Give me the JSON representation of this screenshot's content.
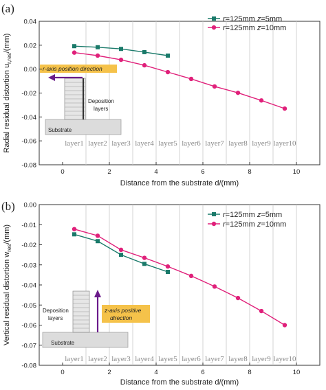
{
  "chart_data": [
    {
      "type": "line",
      "panel_label": "(a)",
      "xlabel": "Distance from the substrate d/(mm)",
      "ylabel": "Radial residual distortion u_r,res/(mm)",
      "ylabel_main": "Radial residual distortion u",
      "ylabel_sub": "r,res",
      "ylabel_tail": "/(mm)",
      "xlim": [
        -1,
        11
      ],
      "ylim": [
        -0.08,
        0.04
      ],
      "xticks": [
        0,
        2,
        4,
        6,
        8,
        10
      ],
      "yticks": [
        -0.08,
        -0.06,
        -0.04,
        -0.02,
        0.0,
        0.02,
        0.04
      ],
      "ytick_labels": [
        "-0.08",
        "-0.06",
        "-0.04",
        "-0.02",
        "0.00",
        "0.02",
        "0.04"
      ],
      "grid": "vertical",
      "legend_position": "top-right",
      "layers": [
        "layer1",
        "layer2",
        "layer3",
        "layer4",
        "layer5",
        "layer6",
        "layer7",
        "layer8",
        "layer9",
        "layer10"
      ],
      "series": [
        {
          "name": "r=125mm z=5mm",
          "name_parts": [
            "r",
            "=125mm ",
            "z",
            "=5mm"
          ],
          "color": "#1a7a6a",
          "marker": "square",
          "x": [
            0.5,
            1.5,
            2.5,
            3.5,
            4.5
          ],
          "y": [
            0.0192,
            0.0183,
            0.0169,
            0.0142,
            0.0113
          ]
        },
        {
          "name": "r=125mm z=10mm",
          "name_parts": [
            "r",
            "=125mm ",
            "z",
            "=10mm"
          ],
          "color": "#e0207a",
          "marker": "circle",
          "x": [
            0.5,
            1.5,
            2.5,
            3.5,
            4.5,
            5.5,
            6.5,
            7.5,
            8.5,
            9.5
          ],
          "y": [
            0.0138,
            0.0113,
            0.0078,
            0.0032,
            -0.0025,
            -0.0082,
            -0.0145,
            -0.0198,
            -0.0262,
            -0.033
          ]
        }
      ],
      "annotations": {
        "direction_label": "r-axis position direction",
        "deposition_label": [
          "Deposition",
          "layers"
        ],
        "substrate_label": "Substrate"
      }
    },
    {
      "type": "line",
      "panel_label": "(b)",
      "xlabel": "Distance from the substrate d/(mm)",
      "ylabel": "Vertical residual distortion w_res/(mm)",
      "ylabel_main": "Vertical residual distortion w",
      "ylabel_sub": "res",
      "ylabel_tail": "/(mm)",
      "xlim": [
        -1,
        11
      ],
      "ylim": [
        -0.08,
        0.0
      ],
      "xticks": [
        0,
        2,
        4,
        6,
        8,
        10
      ],
      "yticks": [
        -0.08,
        -0.07,
        -0.06,
        -0.05,
        -0.04,
        -0.03,
        -0.02,
        -0.01,
        0.0
      ],
      "ytick_labels": [
        "-0.08",
        "-0.07",
        "-0.06",
        "-0.05",
        "-0.04",
        "-0.03",
        "-0.02",
        "-0.01",
        "0.00"
      ],
      "grid": "vertical",
      "legend_position": "top-right",
      "layers": [
        "layer1",
        "layer2",
        "layer3",
        "layer4",
        "layer5",
        "layer6",
        "layer7",
        "layer8",
        "layer9",
        "layer10"
      ],
      "series": [
        {
          "name": "r=125mm z=5mm",
          "name_parts": [
            "r",
            "=125mm ",
            "z",
            "=5mm"
          ],
          "color": "#1a7a6a",
          "marker": "square",
          "x": [
            0.5,
            1.5,
            2.5,
            3.5,
            4.5
          ],
          "y": [
            -0.0148,
            -0.0182,
            -0.025,
            -0.0295,
            -0.0335
          ]
        },
        {
          "name": "r=125mm z=10mm",
          "name_parts": [
            "r",
            "=125mm ",
            "z",
            "=10mm"
          ],
          "color": "#e0207a",
          "marker": "circle",
          "x": [
            0.5,
            1.5,
            2.5,
            3.5,
            4.5,
            5.5,
            6.5,
            7.5,
            8.5,
            9.5
          ],
          "y": [
            -0.0122,
            -0.0155,
            -0.0225,
            -0.0265,
            -0.0308,
            -0.0355,
            -0.0408,
            -0.0465,
            -0.053,
            -0.06
          ]
        }
      ],
      "annotations": {
        "direction_label": [
          "z-axis positive",
          "direction"
        ],
        "deposition_label": [
          "Deposition",
          "layers"
        ],
        "substrate_label": "Substrate"
      }
    }
  ]
}
